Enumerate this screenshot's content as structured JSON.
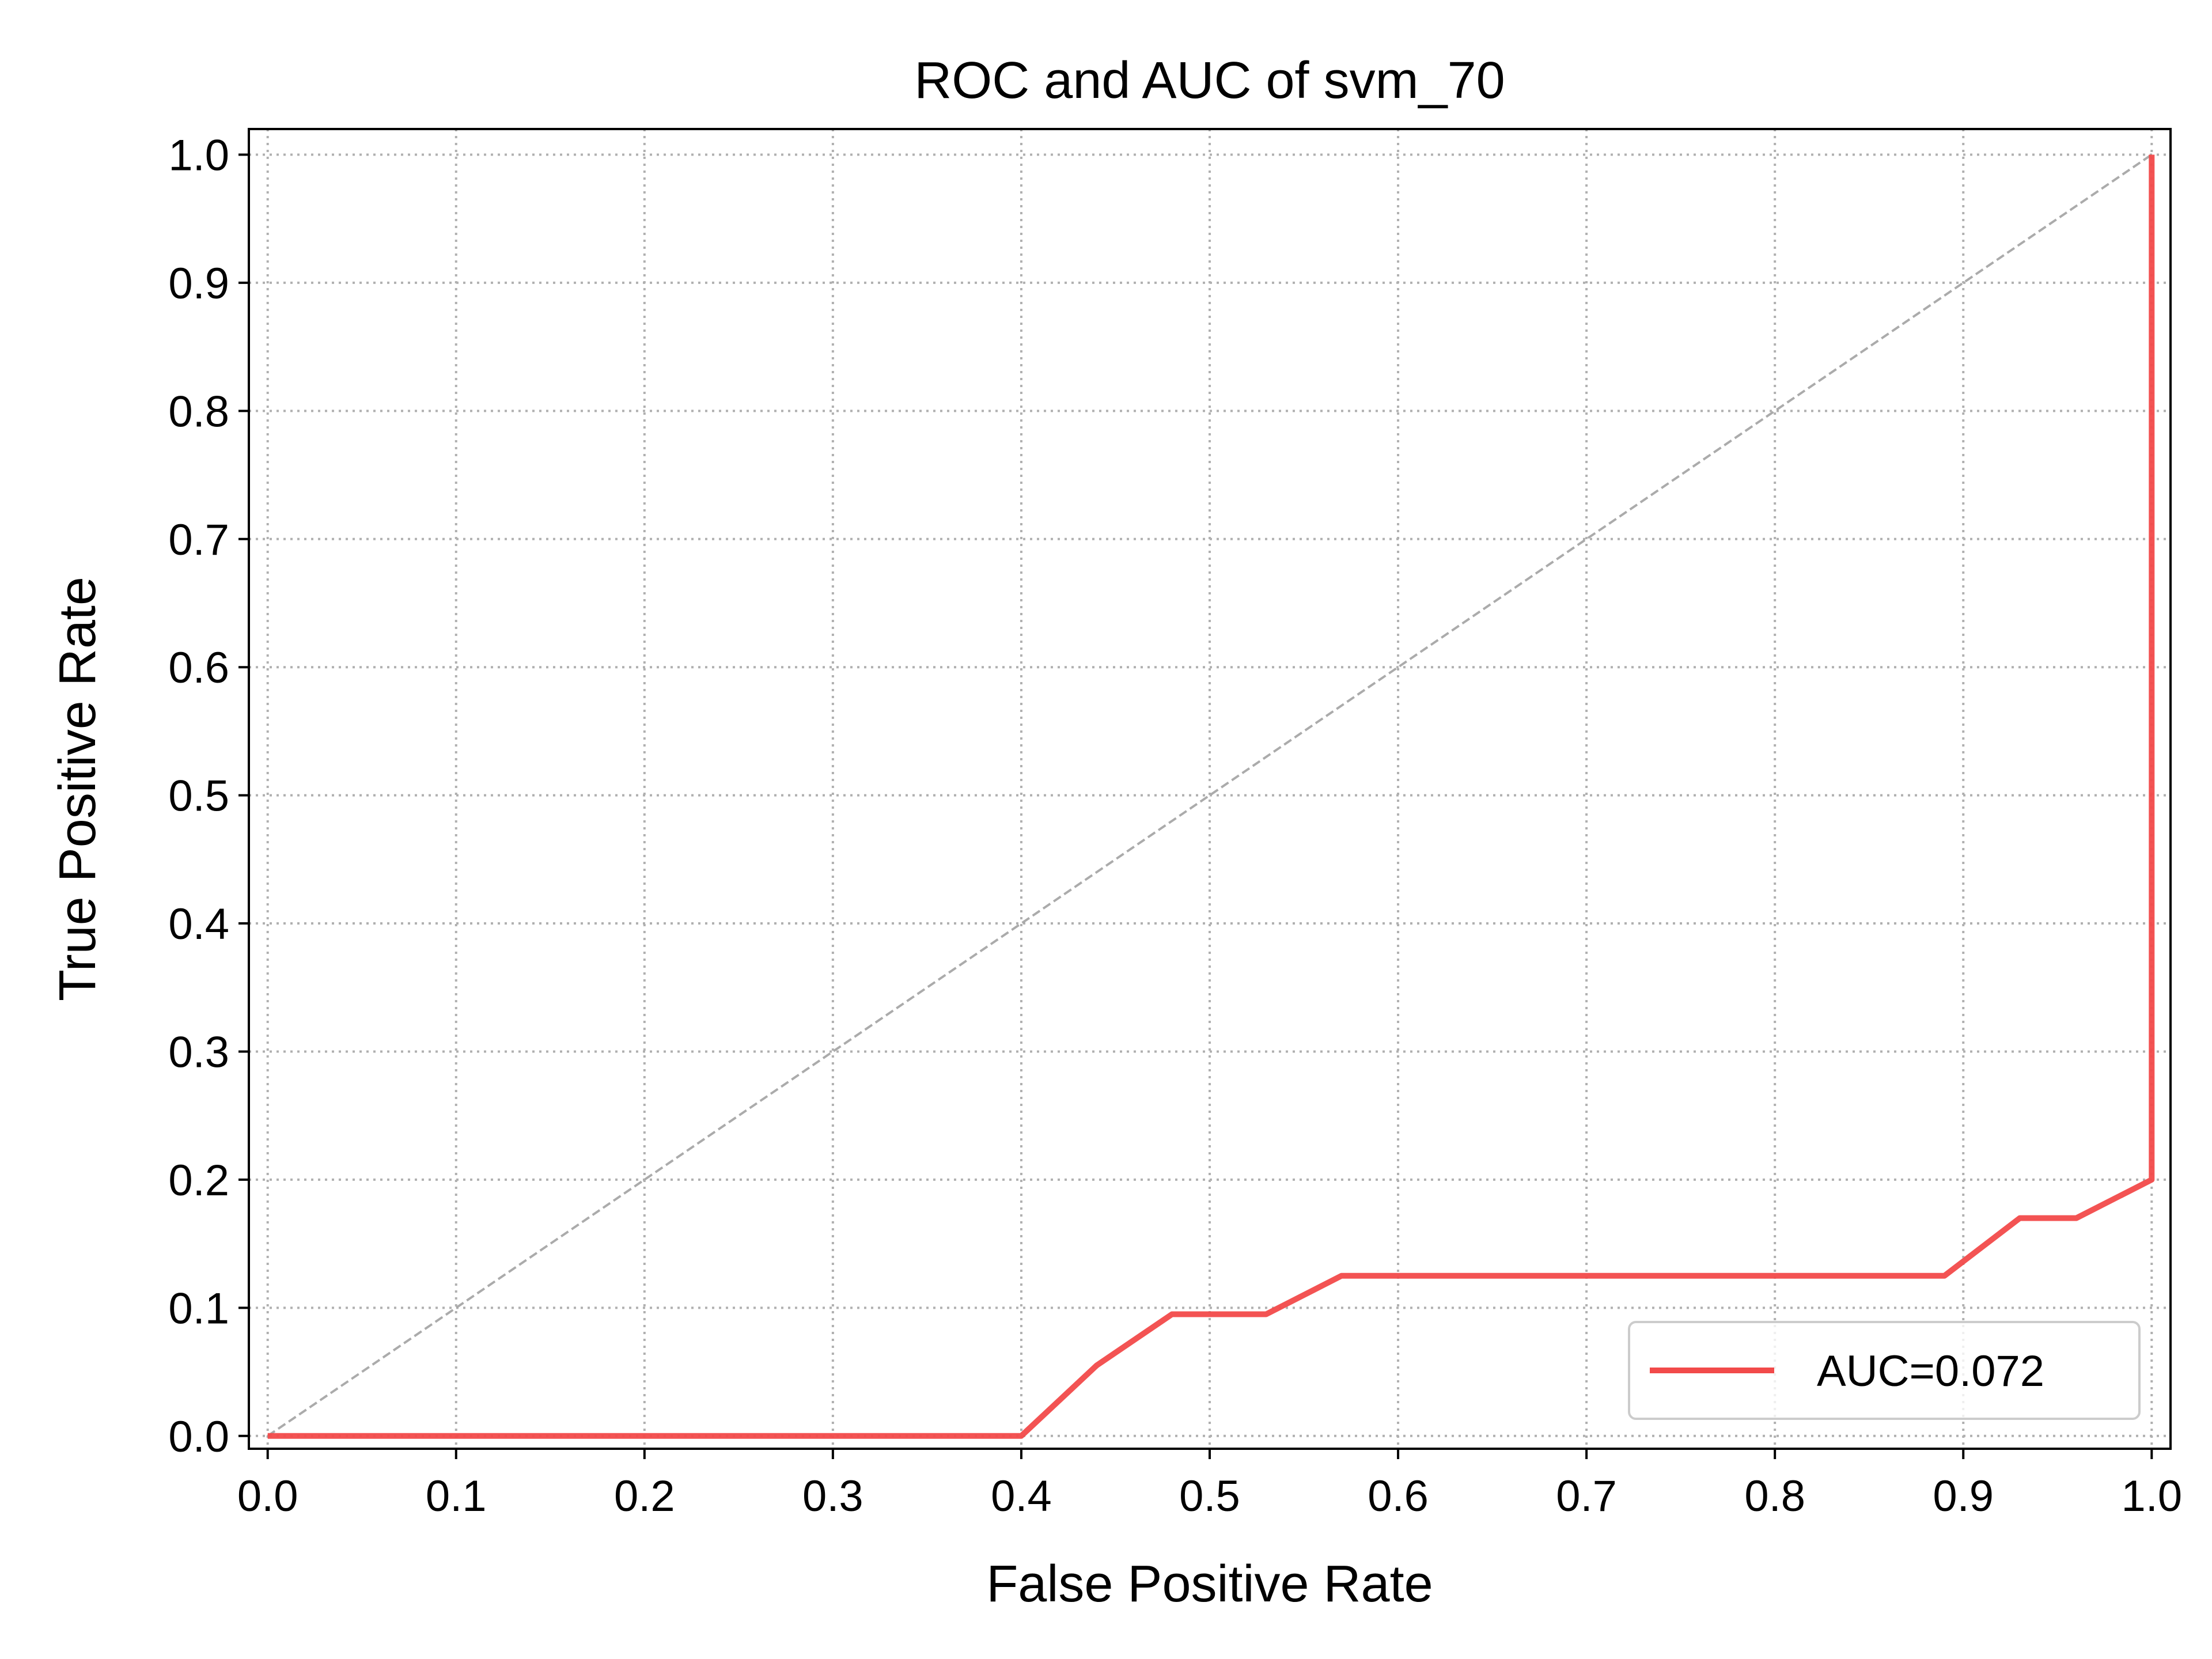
{
  "chart_data": {
    "type": "line",
    "title": "ROC and AUC of svm_70",
    "xlabel": "False Positive Rate",
    "ylabel": "True Positive Rate",
    "xlim": [
      -0.01,
      1.01
    ],
    "ylim": [
      -0.01,
      1.02
    ],
    "grid": true,
    "legend_position": "lower-right",
    "x_ticks": [
      "0.0",
      "0.1",
      "0.2",
      "0.3",
      "0.4",
      "0.5",
      "0.6",
      "0.7",
      "0.8",
      "0.9",
      "1.0"
    ],
    "y_ticks": [
      "0.0",
      "0.1",
      "0.2",
      "0.3",
      "0.4",
      "0.5",
      "0.6",
      "0.7",
      "0.8",
      "0.9",
      "1.0"
    ],
    "series": [
      {
        "name": "AUC=0.072",
        "color": "#f24a4a",
        "style": "solid",
        "x": [
          0.0,
          0.4,
          0.44,
          0.48,
          0.53,
          0.57,
          0.89,
          0.93,
          0.96,
          1.0,
          1.0
        ],
        "y": [
          0.0,
          0.0,
          0.055,
          0.095,
          0.095,
          0.125,
          0.125,
          0.17,
          0.17,
          0.2,
          1.0
        ]
      },
      {
        "color": "#a6a6a6",
        "style": "dashed",
        "x": [
          0.0,
          1.0
        ],
        "y": [
          0.0,
          1.0
        ]
      }
    ]
  }
}
